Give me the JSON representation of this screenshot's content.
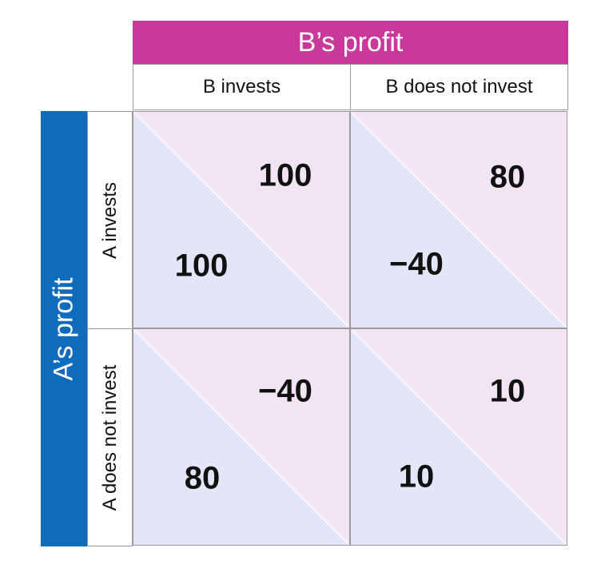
{
  "colors": {
    "b_header": "#c8399b",
    "a_header": "#0f6cbd",
    "b_triangle": "#f3e4f4",
    "a_triangle": "#e3e6f6",
    "grid_line": "#9a9a9a"
  },
  "b_header": "B’s profit",
  "a_header": "A’s profit",
  "columns": [
    "B invests",
    "B does not invest"
  ],
  "rows": [
    "A invests",
    "A does not invest"
  ],
  "cells": [
    [
      {
        "b": "100",
        "a": "100"
      },
      {
        "b": "80",
        "a": "−40"
      }
    ],
    [
      {
        "b": "−40",
        "a": "80"
      },
      {
        "b": "10",
        "a": "10"
      }
    ]
  ]
}
